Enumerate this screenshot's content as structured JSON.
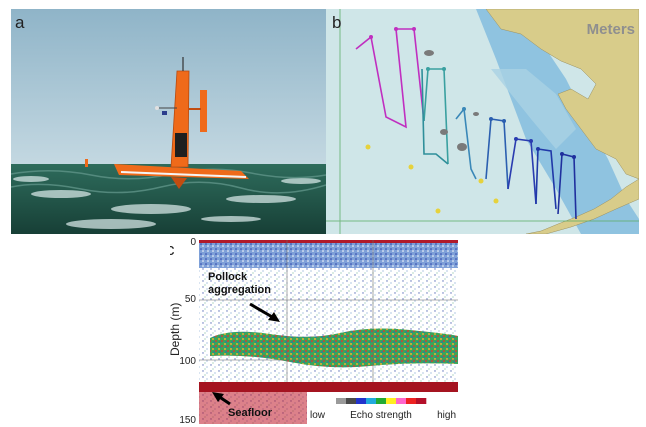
{
  "panel_a": {
    "label": "a"
  },
  "panel_b": {
    "label": "b",
    "map_units": "Meters"
  },
  "panel_c": {
    "label": "c",
    "ylabel": "Depth (m)",
    "y_ticks": [
      "0",
      "50",
      "100",
      "150"
    ],
    "annotation_fish": "Pollock aggregation",
    "annotation_fish_line1": "Pollock",
    "annotation_fish_line2": "aggregation",
    "annotation_seafloor": "Seafloor",
    "colorbar": {
      "low": "low",
      "title": "Echo strength",
      "high": "high",
      "colors": [
        "#9a9a9a",
        "#4a4a4a",
        "#2233cc",
        "#22aadd",
        "#22aa33",
        "#ffee22",
        "#ff66cc",
        "#ee2222",
        "#b4102a"
      ]
    }
  },
  "colors": {
    "sea": "#25604f",
    "sky": "#a6c6d6",
    "drone": "#ef6a1a",
    "map_water": "#cfe6e8",
    "map_land": "#d8cc8a",
    "shallow": "#8fc3e0"
  }
}
